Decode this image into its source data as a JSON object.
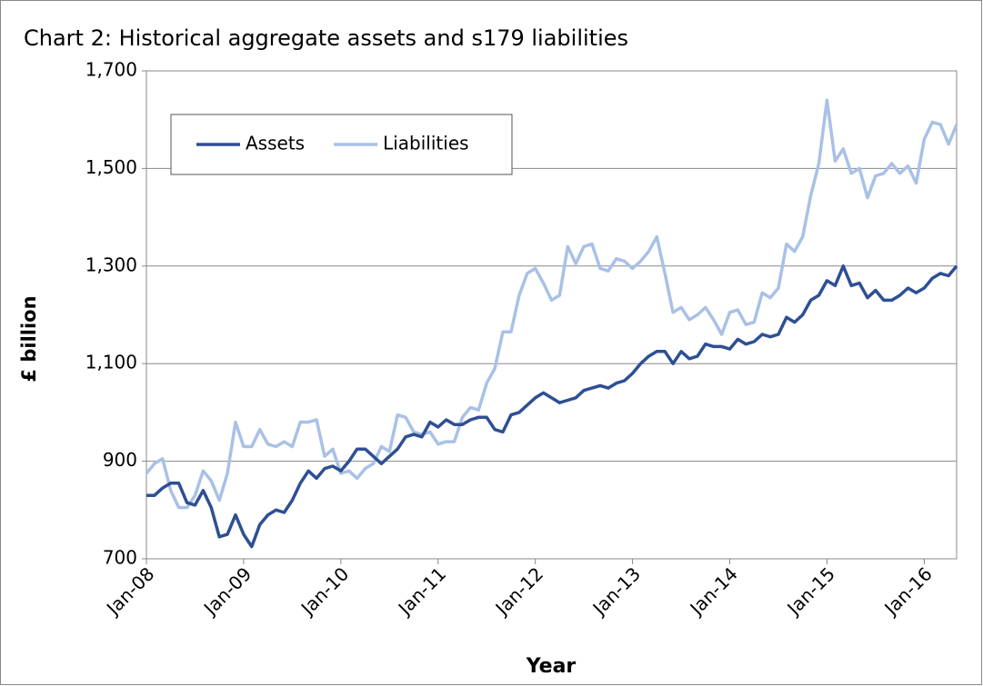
{
  "chart_data": {
    "type": "line",
    "title": "Chart 2: Historical aggregate assets and s179 liabilities",
    "y_label": "£ billion",
    "x_label": "Year",
    "categories": [
      "Jan-08",
      null,
      null,
      null,
      null,
      null,
      null,
      null,
      null,
      null,
      null,
      null,
      "Jan-09",
      null,
      null,
      null,
      null,
      null,
      null,
      null,
      null,
      null,
      null,
      null,
      "Jan-10",
      null,
      null,
      null,
      null,
      null,
      null,
      null,
      null,
      null,
      null,
      null,
      "Jan-11",
      null,
      null,
      null,
      null,
      null,
      null,
      null,
      null,
      null,
      null,
      null,
      "Jan-12",
      null,
      null,
      null,
      null,
      null,
      null,
      null,
      null,
      null,
      null,
      null,
      "Jan-13",
      null,
      null,
      null,
      null,
      null,
      null,
      null,
      null,
      null,
      null,
      null,
      "Jan-14",
      null,
      null,
      null,
      null,
      null,
      null,
      null,
      null,
      null,
      null,
      null,
      "Jan-15",
      null,
      null,
      null,
      null,
      null,
      null,
      null,
      null,
      null,
      null,
      null,
      "Jan-16",
      null,
      null,
      null,
      null
    ],
    "series": [
      {
        "name": "Assets",
        "color": "#2e4f94",
        "values": [
          830,
          830,
          845,
          855,
          855,
          815,
          810,
          840,
          805,
          745,
          750,
          790,
          750,
          725,
          770,
          790,
          800,
          795,
          820,
          855,
          880,
          865,
          885,
          890,
          880,
          900,
          925,
          925,
          910,
          895,
          910,
          925,
          950,
          955,
          950,
          980,
          970,
          985,
          975,
          975,
          985,
          990,
          990,
          965,
          960,
          995,
          1000,
          1015,
          1030,
          1040,
          1030,
          1020,
          1025,
          1030,
          1045,
          1050,
          1055,
          1050,
          1060,
          1065,
          1080,
          1100,
          1115,
          1125,
          1125,
          1100,
          1125,
          1110,
          1115,
          1140,
          1135,
          1135,
          1130,
          1150,
          1140,
          1145,
          1160,
          1155,
          1160,
          1195,
          1185,
          1200,
          1230,
          1240,
          1270,
          1260,
          1300,
          1260,
          1265,
          1235,
          1250,
          1230,
          1230,
          1240,
          1255,
          1245,
          1255,
          1275,
          1285,
          1280,
          1300
        ]
      },
      {
        "name": "Liabilities",
        "color": "#a9c1e6",
        "values": [
          875,
          895,
          905,
          840,
          805,
          805,
          830,
          880,
          860,
          820,
          875,
          980,
          930,
          930,
          965,
          935,
          930,
          940,
          930,
          980,
          980,
          985,
          910,
          925,
          875,
          880,
          865,
          885,
          895,
          930,
          920,
          995,
          990,
          960,
          955,
          960,
          935,
          940,
          940,
          990,
          1010,
          1005,
          1060,
          1090,
          1165,
          1165,
          1240,
          1285,
          1295,
          1265,
          1230,
          1240,
          1340,
          1305,
          1340,
          1345,
          1295,
          1290,
          1315,
          1310,
          1295,
          1310,
          1330,
          1360,
          1285,
          1205,
          1215,
          1190,
          1200,
          1215,
          1190,
          1160,
          1205,
          1210,
          1180,
          1185,
          1245,
          1235,
          1255,
          1345,
          1330,
          1360,
          1445,
          1510,
          1640,
          1515,
          1540,
          1490,
          1500,
          1440,
          1485,
          1490,
          1510,
          1490,
          1505,
          1470,
          1560,
          1595,
          1590,
          1550,
          1590
        ]
      }
    ],
    "ylim": [
      700,
      1700
    ],
    "yticks": [
      700,
      {
        "value": 900,
        "label": "900"
      },
      {
        "value": 1100,
        "label": "1,100"
      },
      {
        "value": 1300,
        "label": "1,300"
      },
      {
        "value": 1500,
        "label": "1,500"
      },
      {
        "value": 1700,
        "label": "1,700"
      }
    ],
    "grid": true,
    "legend": "upper-left"
  }
}
